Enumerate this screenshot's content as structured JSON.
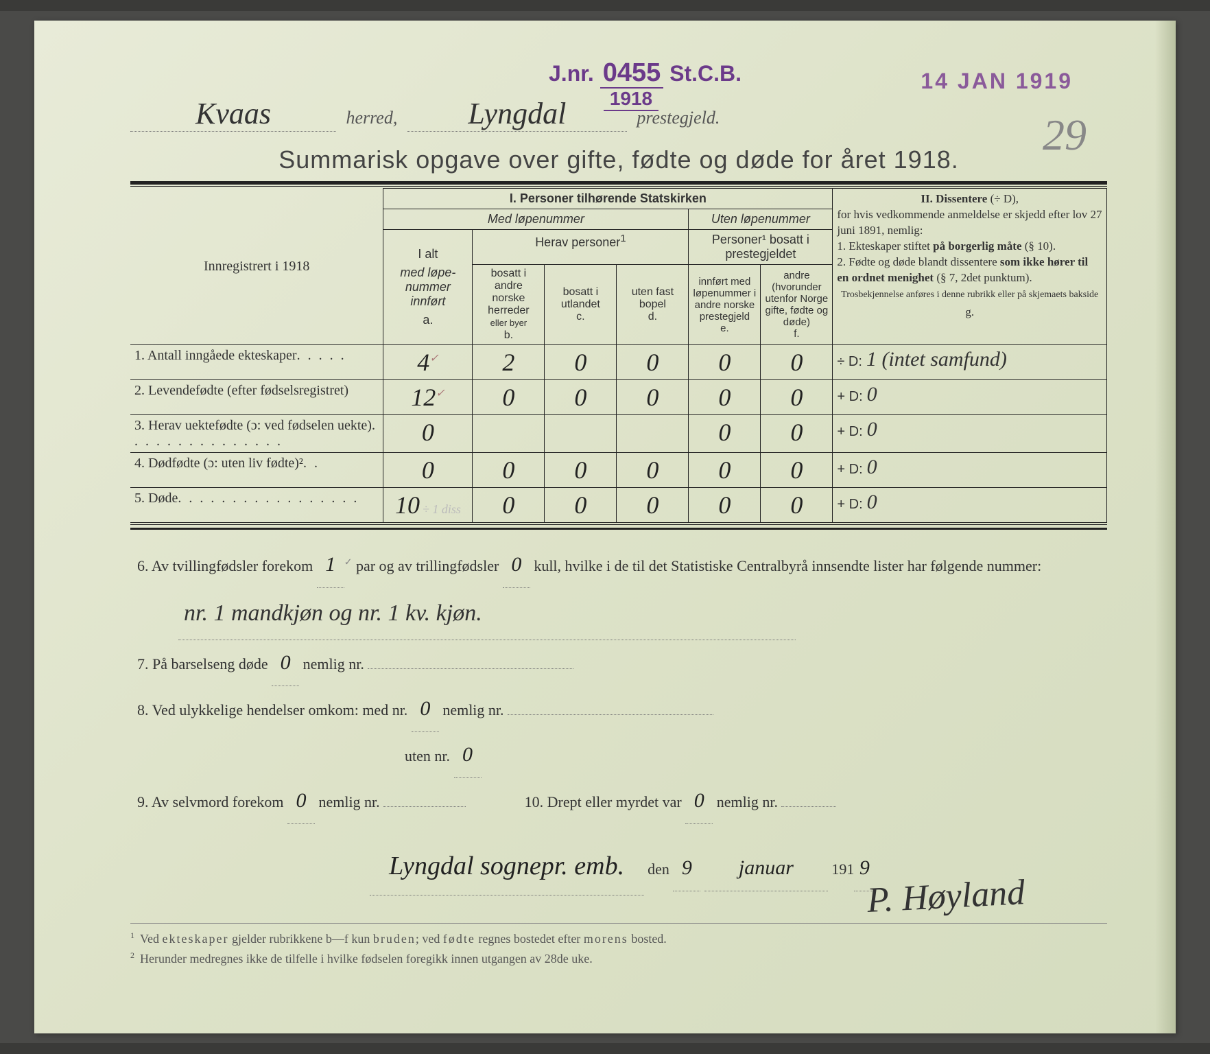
{
  "stamps": {
    "jnr_prefix": "J.nr.",
    "jnr_number": "0455",
    "jnr_suffix": "St.C.B.",
    "jnr_year": "1918",
    "date_stamp": "14 JAN 1919",
    "page_number": "29"
  },
  "header": {
    "herred": "Kvaas",
    "herred_label": "herred,",
    "prestegjeld": "Lyngdal",
    "prestegjeld_label": "prestegjeld."
  },
  "title": "Summarisk opgave over gifte, fødte og døde for året 1918.",
  "table_headers": {
    "reg_label": "Innregistrert i 1918",
    "section1": "I.  Personer tilhørende Statskirken",
    "section2_title": "II.  Dissentere",
    "section2_suffix": "(÷ D),",
    "med_lope": "Med løpenummer",
    "uten_lope": "Uten løpenummer",
    "herav": "Herav personer",
    "personer_bosatt": "Personer¹ bosatt i prestegjeldet",
    "diss_text_1": "for hvis vedkommende anmeldelse er skjedd efter lov 27 juni 1891, nemlig:",
    "diss_text_2a": "1. Ekteskaper stiftet ",
    "diss_text_2b": "på borgerlig måte",
    "diss_text_2c": " (§ 10).",
    "diss_text_3a": "2. Fødte og døde blandt dissentere ",
    "diss_text_3b": "som ikke hører til en ordnet menighet",
    "diss_text_3c": " (§ 7, 2det punktum).",
    "diss_note": "Trosbekjennelse anføres i denne rubrikk eller på skjemaets bakside",
    "col_a_1": "I alt",
    "col_a_2": "med løpe-nummer innført",
    "col_a_ref": "a.",
    "col_b_1": "bosatt i andre norske herreder",
    "col_b_2": "eller byer",
    "col_b_ref": "b.",
    "col_c_1": "bosatt i utlandet",
    "col_c_ref": "c.",
    "col_d_1": "uten fast bopel",
    "col_d_ref": "d.",
    "col_e_1": "innført med løpenummer i andre norske prestegjeld",
    "col_e_ref": "e.",
    "col_f_1": "andre (hvorunder utenfor Norge gifte, fødte og døde)",
    "col_f_ref": "f.",
    "col_g_ref": "g."
  },
  "rows": [
    {
      "num": "1.",
      "label": "Antall inngåede ekteskaper",
      "dots": ". . . . .",
      "a": "4",
      "a_mark": "✓",
      "b": "2",
      "c": "0",
      "d": "0",
      "e": "0",
      "f": "0",
      "d_prefix": "÷ D:",
      "g": "1 (intet samfund)"
    },
    {
      "num": "2.",
      "label": "Levendefødte (efter fødselsregistret)",
      "dots": "",
      "a": "12",
      "a_mark": "✓",
      "b": "0",
      "c": "0",
      "d": "0",
      "e": "0",
      "f": "0",
      "d_prefix": "+ D:",
      "g": "0"
    },
    {
      "num": "3.",
      "label": "Herav uektefødte (ɔ: ved fødselen uekte)",
      "dots": ". . . . . . . . . . . . . . .",
      "a": "0",
      "a_mark": "",
      "b": "",
      "c": "",
      "d": "",
      "e": "0",
      "f": "0",
      "d_prefix": "+ D:",
      "g": "0"
    },
    {
      "num": "4.",
      "label": "Dødfødte (ɔ: uten liv fødte)²",
      "dots": ". .",
      "a": "0",
      "a_mark": "",
      "b": "0",
      "c": "0",
      "d": "0",
      "e": "0",
      "f": "0",
      "d_prefix": "+ D:",
      "g": "0"
    },
    {
      "num": "5.",
      "label": "Døde",
      "dots": ". . . . . . . . . . . . . . . . .",
      "a": "10",
      "a_mark": "",
      "a_note": "÷ 1 diss",
      "b": "0",
      "c": "0",
      "d": "0",
      "e": "0",
      "f": "0",
      "d_prefix": "+ D:",
      "g": "0"
    }
  ],
  "lower": {
    "q6_a": "6. Av tvillingfødsler forekom",
    "q6_twins": "1",
    "q6_b": "par og av trillingfødsler",
    "q6_trip": "0",
    "q6_c": "kull, hvilke i de til det Statistiske Centralbyrå innsendte lister har følgende nummer:",
    "q6_fill": "nr. 1 mandkjøn og nr. 1 kv. kjøn.",
    "q7_a": "7. På barselseng døde",
    "q7_v": "0",
    "q7_b": "nemlig nr.",
    "q8_a": "8. Ved ulykkelige hendelser omkom:  med nr.",
    "q8_med": "0",
    "q8_b": "nemlig nr.",
    "q8_c": "uten nr.",
    "q8_uten": "0",
    "q9_a": "9. Av selvmord forekom",
    "q9_v": "0",
    "q9_b": "nemlig nr.",
    "q10_a": "10.  Drept eller myrdet var",
    "q10_v": "0",
    "q10_b": "nemlig nr.",
    "place": "Lyngdal sognepr. emb.",
    "den": "den",
    "day": "9",
    "month": "januar",
    "year_prefix": "191",
    "year_digit": "9",
    "signature": "P. Høyland"
  },
  "footnotes": {
    "f1": "Ved ekteskaper gjelder rubrikkene b—f kun bruden; ved fødte regnes bostedet efter morens bosted.",
    "f2": "Herunder medregnes ikke de tilfelle i hvilke fødselen foregikk innen utgangen av 28de uke."
  },
  "colors": {
    "paper_bg": "#e0e5cc",
    "stamp_purple": "#6b3a8a",
    "text": "#333333",
    "rule": "#222222"
  }
}
